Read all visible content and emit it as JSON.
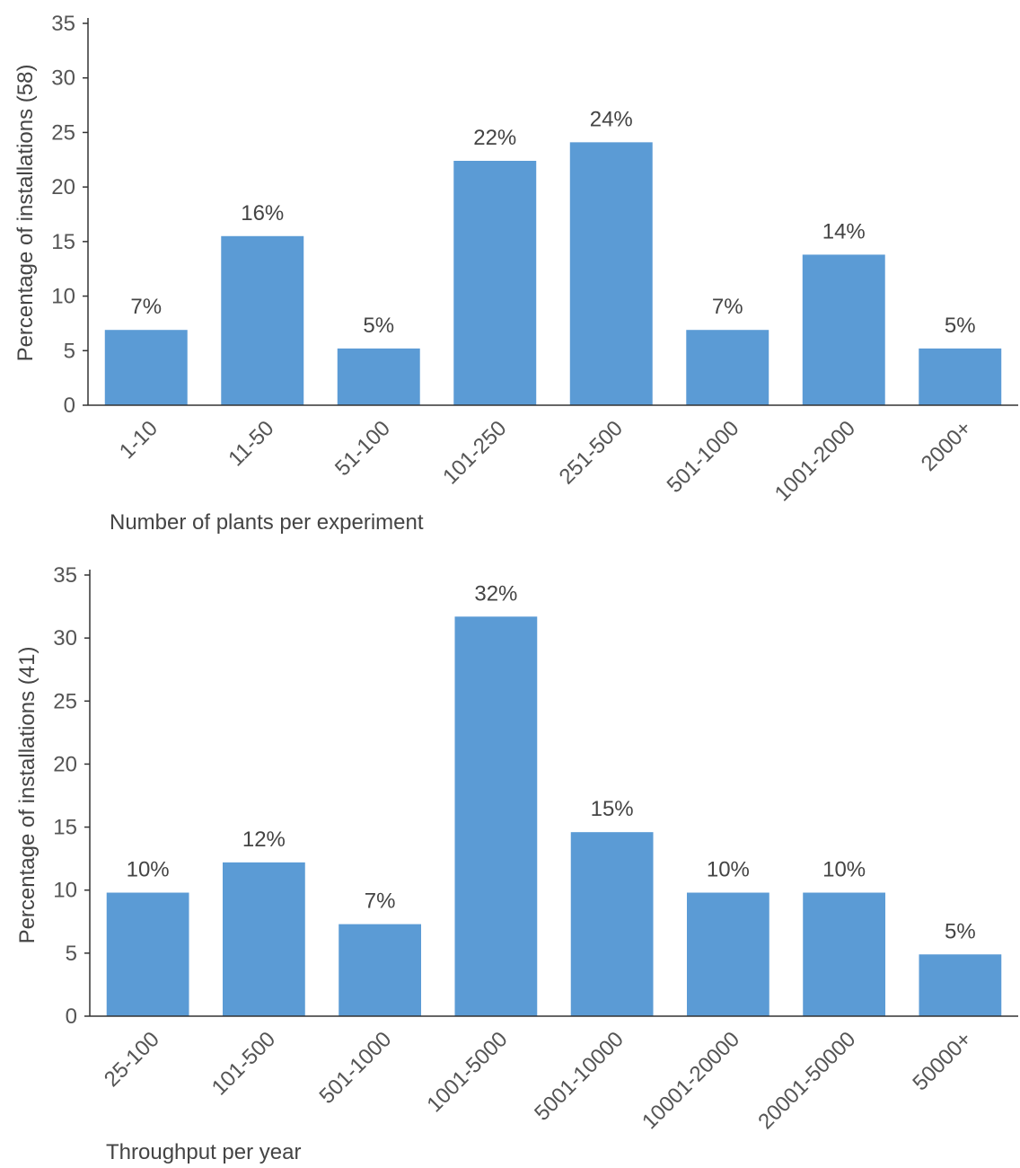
{
  "chart_data": [
    {
      "type": "bar",
      "categories": [
        "1-10",
        "11-50",
        "51-100",
        "101-250",
        "251-500",
        "501-1000",
        "1001-2000",
        "2000+"
      ],
      "values": [
        6.9,
        15.5,
        5.2,
        22.4,
        24.1,
        6.9,
        13.8,
        5.2
      ],
      "data_labels": [
        "7%",
        "16%",
        "5%",
        "22%",
        "24%",
        "7%",
        "14%",
        "5%"
      ],
      "title": "",
      "xlabel": "Number of plants per experiment",
      "ylabel": "Percentage of installations (58)",
      "ylim": [
        0,
        35
      ],
      "yticks": [
        0,
        5,
        10,
        15,
        20,
        25,
        30,
        35
      ],
      "grid": false,
      "bar_color": "#5b9bd5"
    },
    {
      "type": "bar",
      "categories": [
        "25-100",
        "101-500",
        "501-1000",
        "1001-5000",
        "5001-10000",
        "10001-20000",
        "20001-50000",
        "50000+"
      ],
      "values": [
        9.8,
        12.2,
        7.3,
        31.7,
        14.6,
        9.8,
        9.8,
        4.9
      ],
      "data_labels": [
        "10%",
        "12%",
        "7%",
        "32%",
        "15%",
        "10%",
        "10%",
        "5%"
      ],
      "title": "",
      "xlabel": "Throughput per year",
      "ylabel": "Percentage of installations (41)",
      "ylim": [
        0,
        35
      ],
      "yticks": [
        0,
        5,
        10,
        15,
        20,
        25,
        30,
        35
      ],
      "grid": false,
      "bar_color": "#5b9bd5"
    }
  ]
}
